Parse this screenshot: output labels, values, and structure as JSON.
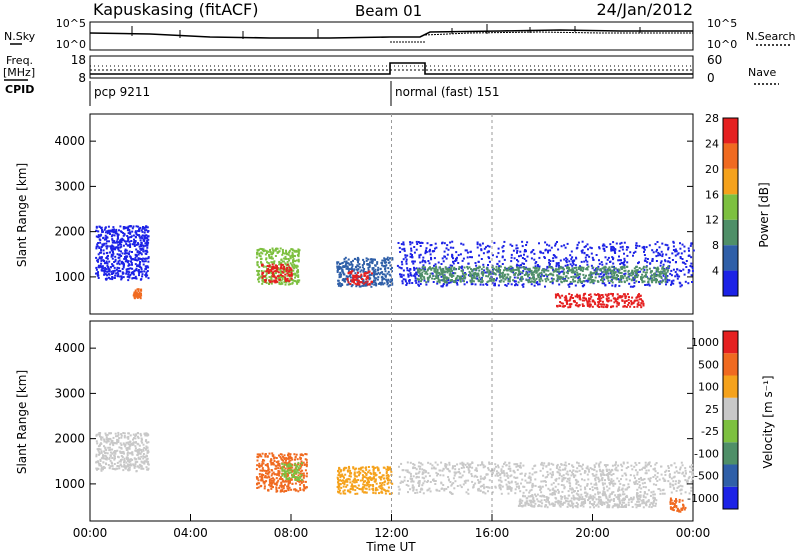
{
  "header": {
    "station": "Kapuskasing (fitACF)",
    "beam": "Beam 01",
    "date": "24/Jan/2012"
  },
  "noise_panel": {
    "left_label": "N.Sky",
    "right_label": "N.Search",
    "left_ticks": [
      "10^5",
      "10^0"
    ],
    "right_ticks": [
      "10^5",
      "10^0"
    ]
  },
  "freq_panel": {
    "left_label_line1": "Freq.",
    "left_label_line2": "[MHz]",
    "right_label": "Nave",
    "left_ticks": [
      "18",
      "8"
    ],
    "right_ticks": [
      "60",
      "0"
    ]
  },
  "cpid": {
    "label": "CPID",
    "segments": [
      {
        "text": "pcp 9211",
        "start_hour": 0
      },
      {
        "text": "normal (fast) 151",
        "start_hour": 12
      }
    ]
  },
  "time_axis": {
    "title": "Time UT",
    "tick_labels": [
      "00:00",
      "04:00",
      "08:00",
      "12:00",
      "16:00",
      "20:00",
      "00:00"
    ],
    "range_hours": [
      0,
      24
    ]
  },
  "chart_data": [
    {
      "type": "heatmap",
      "name": "power",
      "ylabel": "Slant Range [km]",
      "ylim": [
        180,
        4600
      ],
      "y_ticks": [
        "1000",
        "2000",
        "3000",
        "4000"
      ],
      "y_tick_values": [
        1000,
        2000,
        3000,
        4000
      ],
      "colorbar_label": "Power [dB]",
      "colorbar_ticks": [
        "4",
        "8",
        "12",
        "16",
        "20",
        "24",
        "28"
      ],
      "colorbar_colors": [
        "#1c22e6",
        "#2f5fa8",
        "#4f8f68",
        "#7dc040",
        "#f5a21c",
        "#f06a20",
        "#e52020"
      ],
      "scatter_regions": [
        {
          "t0": 0.2,
          "t1": 2.3,
          "r0": 950,
          "r1": 2150,
          "color": "#1c22e6"
        },
        {
          "t0": 1.7,
          "t1": 2.0,
          "r0": 550,
          "r1": 750,
          "color": "#f06a20"
        },
        {
          "t0": 6.6,
          "t1": 8.3,
          "r0": 850,
          "r1": 1650,
          "color": "#7dc040"
        },
        {
          "t0": 6.8,
          "t1": 8.0,
          "r0": 900,
          "r1": 1300,
          "color": "#e52020"
        },
        {
          "t0": 9.8,
          "t1": 12.0,
          "r0": 800,
          "r1": 1450,
          "color": "#2f5fa8"
        },
        {
          "t0": 10.2,
          "t1": 11.2,
          "r0": 850,
          "r1": 1150,
          "color": "#e52020"
        },
        {
          "t0": 12.2,
          "t1": 24.0,
          "r0": 800,
          "r1": 1800,
          "color": "#1c22e6"
        },
        {
          "t0": 13.0,
          "t1": 23.0,
          "r0": 900,
          "r1": 1250,
          "color": "#4f8f68"
        },
        {
          "t0": 18.5,
          "t1": 22.0,
          "r0": 350,
          "r1": 650,
          "color": "#e52020"
        }
      ]
    },
    {
      "type": "heatmap",
      "name": "velocity",
      "ylabel": "Slant Range [km]",
      "ylim": [
        180,
        4600
      ],
      "y_ticks": [
        "1000",
        "2000",
        "3000",
        "4000"
      ],
      "y_tick_values": [
        1000,
        2000,
        3000,
        4000
      ],
      "colorbar_label": "Velocity [m s⁻¹]",
      "colorbar_ticks": [
        "1000",
        "500",
        "100",
        "25",
        "-25",
        "-100",
        "-500",
        "-1000"
      ],
      "colorbar_colors": [
        "#1c22e6",
        "#2f5fa8",
        "#4f8f68",
        "#7dc040",
        "#c8c8c8",
        "#f5a21c",
        "#f06a20",
        "#e52020"
      ],
      "scatter_regions": [
        {
          "t0": 0.2,
          "t1": 2.3,
          "r0": 1300,
          "r1": 2150,
          "color": "#c8c8c8"
        },
        {
          "t0": 6.6,
          "t1": 8.6,
          "r0": 850,
          "r1": 1700,
          "color": "#f06a20"
        },
        {
          "t0": 7.6,
          "t1": 8.4,
          "r0": 1100,
          "r1": 1500,
          "color": "#7dc040"
        },
        {
          "t0": 9.8,
          "t1": 12.0,
          "r0": 800,
          "r1": 1400,
          "color": "#f5a21c"
        },
        {
          "t0": 12.2,
          "t1": 24.0,
          "r0": 800,
          "r1": 1500,
          "color": "#c8c8c8"
        },
        {
          "t0": 17.0,
          "t1": 22.5,
          "r0": 500,
          "r1": 800,
          "color": "#c8c8c8"
        },
        {
          "t0": 23.0,
          "t1": 23.7,
          "r0": 400,
          "r1": 700,
          "color": "#f06a20"
        }
      ]
    }
  ],
  "colors": {
    "axis": "#000000",
    "guide": "#9a9a9a"
  }
}
